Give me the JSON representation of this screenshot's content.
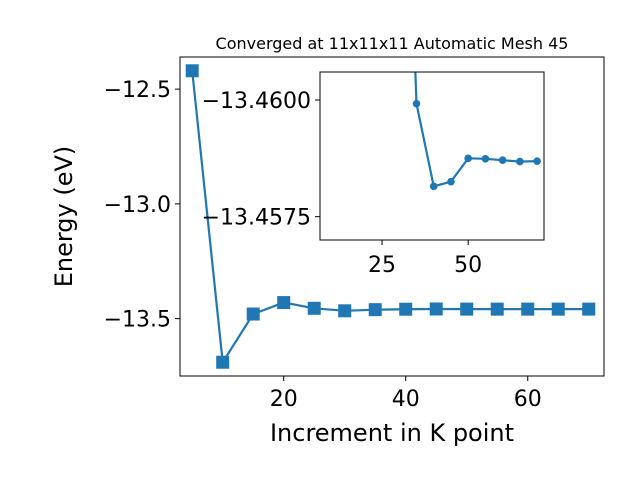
{
  "chart_data": [
    {
      "type": "line",
      "title": "Converged at 11x11x11 Automatic Mesh 45",
      "xlabel": "Increment in K point",
      "ylabel": "Energy (eV)",
      "xlim": [
        3,
        72.5
      ],
      "ylim": [
        -13.75,
        -12.36
      ],
      "xticks": [
        20,
        40,
        60
      ],
      "xtick_labels": [
        "20",
        "40",
        "60"
      ],
      "yticks": [
        -12.5,
        -13.0,
        -13.5
      ],
      "ytick_labels": [
        "−12.5",
        "−13.0",
        "−13.5"
      ],
      "grid": false,
      "series": [
        {
          "marker": "square",
          "color": "#1f77b4",
          "x": [
            5,
            10,
            15,
            20,
            25,
            30,
            35,
            40,
            45,
            50,
            55,
            60,
            65,
            70
          ],
          "y": [
            -12.42,
            -13.69,
            -13.48,
            -13.43,
            -13.455,
            -13.466,
            -13.461,
            -13.459,
            -13.458,
            -13.4585,
            -13.4586,
            -13.4586,
            -13.4586,
            -13.4586
          ]
        }
      ]
    },
    {
      "type": "line",
      "title": "",
      "xlim": [
        7,
        72
      ],
      "ylim": [
        -13.457,
        -13.4606
      ],
      "xticks": [
        25,
        50
      ],
      "xtick_labels": [
        "25",
        "50"
      ],
      "yticks": [
        -13.46,
        -13.4575
      ],
      "ytick_labels": [
        "−13.4600",
        "−13.4575"
      ],
      "grid": false,
      "series": [
        {
          "marker": "circle",
          "color": "#1f77b4",
          "x": [
            35,
            40,
            45,
            50,
            55,
            60,
            65,
            70
          ],
          "y": [
            -13.45992,
            -13.45815,
            -13.45825,
            -13.45875,
            -13.45874,
            -13.45871,
            -13.45868,
            -13.45869
          ]
        }
      ]
    }
  ]
}
